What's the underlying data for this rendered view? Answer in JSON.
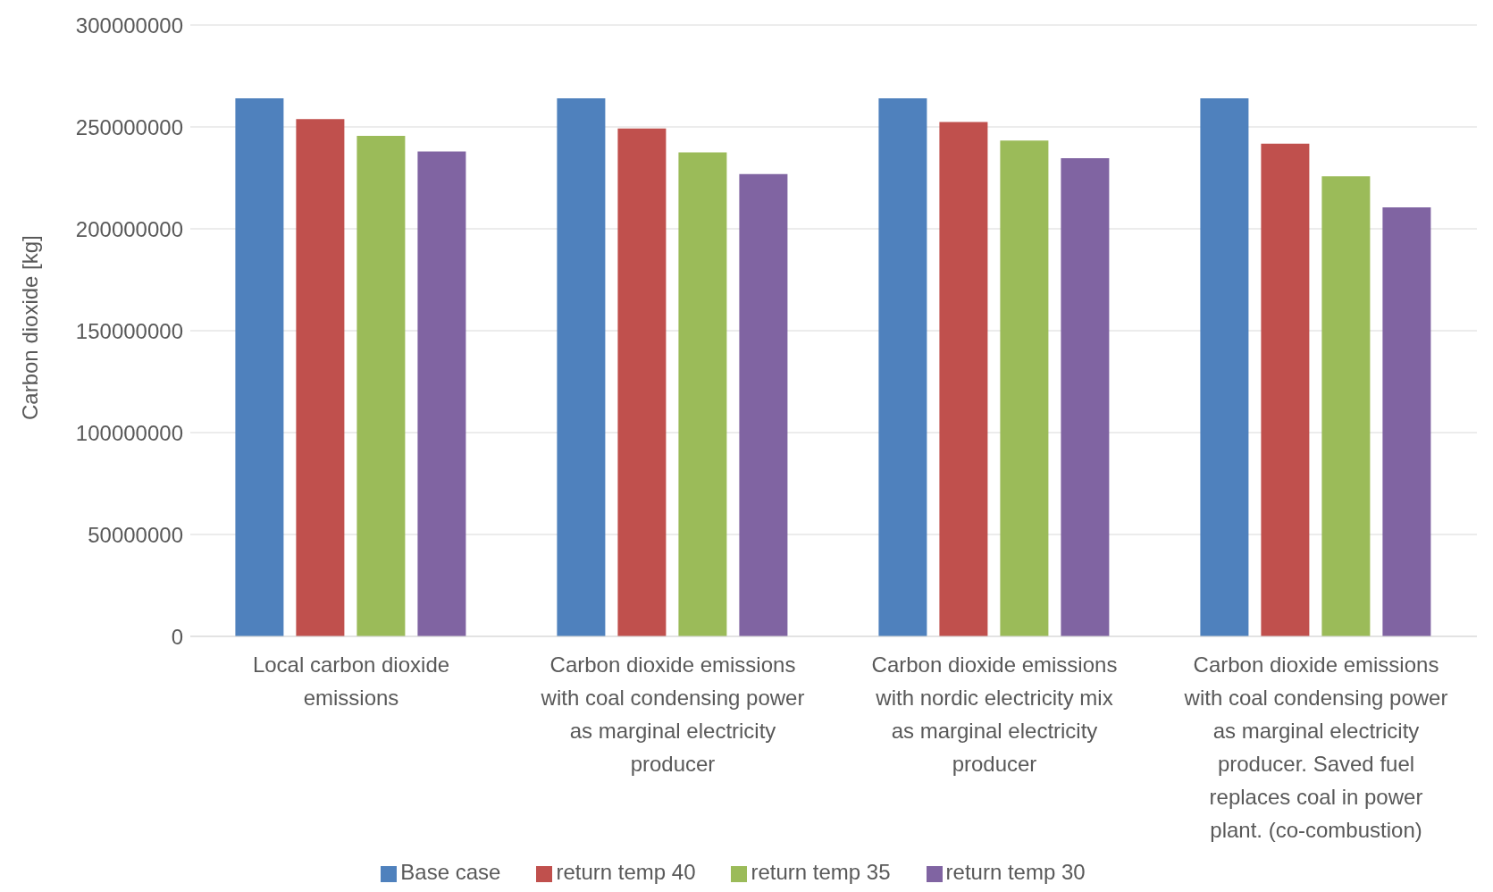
{
  "chart_data": {
    "type": "bar",
    "categories": [
      "Local carbon dioxide emissions",
      "Carbon dioxide emissions with coal condensing power as marginal electricity producer",
      "Carbon dioxide emissions with nordic electricity mix as marginal electricity producer",
      "Carbon dioxide emissions with coal condensing power as marginal electricity producer. Saved fuel replaces coal in power plant. (co-combustion)"
    ],
    "series": [
      {
        "name": "Base case",
        "color": "#4f81bd",
        "values": [
          264000000,
          264000000,
          264000000,
          264000000
        ]
      },
      {
        "name": "return temp 40",
        "color": "#c0504d",
        "values": [
          253800000,
          249200000,
          252400000,
          241800000
        ]
      },
      {
        "name": "return temp 35",
        "color": "#9bbb59",
        "values": [
          245600000,
          237500000,
          243300000,
          225800000
        ]
      },
      {
        "name": "return temp 30",
        "color": "#8064a2",
        "values": [
          237900000,
          226900000,
          234600000,
          210500000
        ]
      }
    ],
    "ylabel": "Carbon dioxide [kg]",
    "ylim": [
      0,
      300000000
    ],
    "yticks": [
      0,
      50000000,
      100000000,
      150000000,
      200000000,
      250000000,
      300000000
    ],
    "grid": "y",
    "legend": "bottom"
  }
}
